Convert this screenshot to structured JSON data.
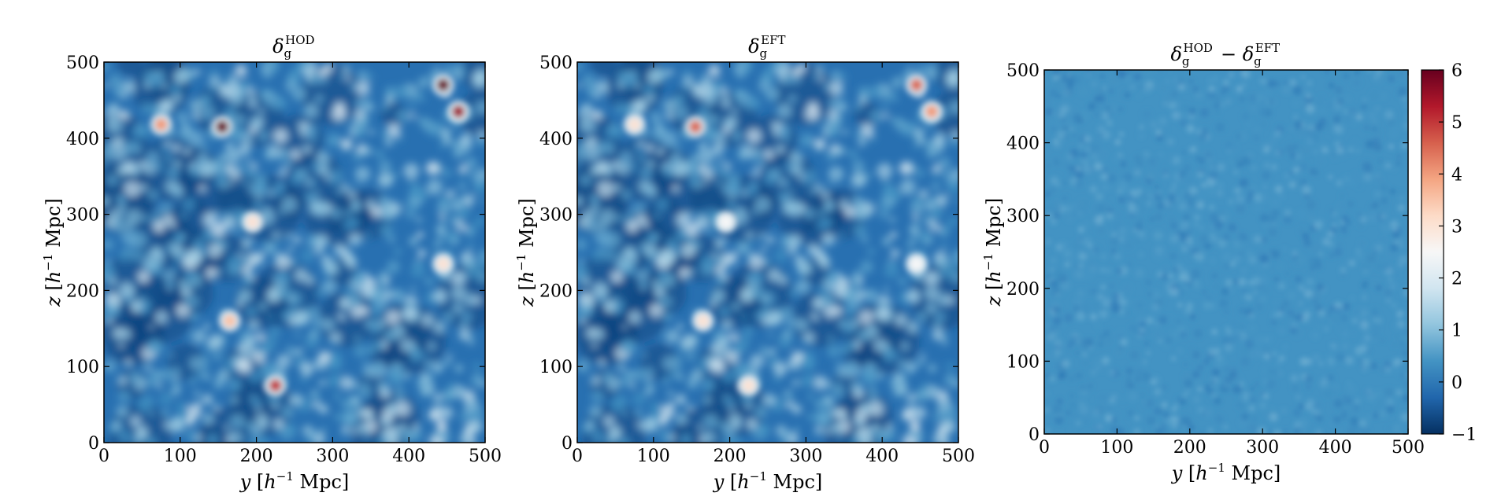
{
  "chart_data": [
    {
      "type": "heatmap",
      "panel": "left",
      "title": {
        "base": "δ",
        "sub": "g",
        "sup": "HOD"
      },
      "xlabel": {
        "var": "y",
        "unit_open": "[",
        "h": "h",
        "exp": "−1",
        "unit": "Mpc]"
      },
      "ylabel": {
        "var": "z",
        "unit_open": "[",
        "h": "h",
        "exp": "−1",
        "unit": "Mpc]"
      },
      "xlim": [
        0,
        500
      ],
      "ylim": [
        0,
        500
      ],
      "xticks": [
        "0",
        "100",
        "200",
        "300",
        "400",
        "500"
      ],
      "yticks": [
        "0",
        "100",
        "200",
        "300",
        "400",
        "500"
      ],
      "colormap": "RdBu_r",
      "field_description_level": "galaxy overdensity, mostly -1 to 2 with peaks near 6",
      "peaks": [
        {
          "y": 445,
          "z": 470,
          "value": 6
        },
        {
          "y": 465,
          "z": 435,
          "value": 5.5
        },
        {
          "y": 155,
          "z": 415,
          "value": 6
        },
        {
          "y": 75,
          "z": 418,
          "value": 4
        },
        {
          "y": 225,
          "z": 75,
          "value": 5
        },
        {
          "y": 165,
          "z": 160,
          "value": 3.5
        },
        {
          "y": 445,
          "z": 235,
          "value": 3
        },
        {
          "y": 195,
          "z": 290,
          "value": 3
        }
      ]
    },
    {
      "type": "heatmap",
      "panel": "middle",
      "title": {
        "base": "δ",
        "sub": "g",
        "sup": "EFT"
      },
      "xlabel": {
        "var": "y",
        "unit_open": "[",
        "h": "h",
        "exp": "−1",
        "unit": "Mpc]"
      },
      "ylabel": {
        "var": "z",
        "unit_open": "[",
        "h": "h",
        "exp": "−1",
        "unit": "Mpc]"
      },
      "xlim": [
        0,
        500
      ],
      "ylim": [
        0,
        500
      ],
      "xticks": [
        "0",
        "100",
        "200",
        "300",
        "400",
        "500"
      ],
      "yticks": [
        "0",
        "100",
        "200",
        "300",
        "400",
        "500"
      ],
      "colormap": "RdBu_r",
      "peaks": [
        {
          "y": 445,
          "z": 470,
          "value": 4.5
        },
        {
          "y": 465,
          "z": 435,
          "value": 4
        },
        {
          "y": 155,
          "z": 415,
          "value": 4.5
        },
        {
          "y": 75,
          "z": 418,
          "value": 3
        },
        {
          "y": 225,
          "z": 75,
          "value": 3
        },
        {
          "y": 165,
          "z": 160,
          "value": 3
        },
        {
          "y": 445,
          "z": 235,
          "value": 2.5
        },
        {
          "y": 195,
          "z": 290,
          "value": 2.5
        }
      ]
    },
    {
      "type": "heatmap",
      "panel": "right",
      "title": {
        "base": "δ",
        "sub": "g",
        "sup": "HOD",
        "op": "−",
        "base2": "δ",
        "sub2": "g",
        "sup2": "EFT"
      },
      "xlabel": {
        "var": "y",
        "unit_open": "[",
        "h": "h",
        "exp": "−1",
        "unit": "Mpc]"
      },
      "ylabel": {
        "var": "z",
        "unit_open": "[",
        "h": "h",
        "exp": "−1",
        "unit": "Mpc]"
      },
      "xlim": [
        0,
        500
      ],
      "ylim": [
        0,
        500
      ],
      "xticks": [
        "0",
        "100",
        "200",
        "300",
        "400",
        "500"
      ],
      "yticks": [
        "0",
        "100",
        "200",
        "300",
        "400",
        "500"
      ],
      "colormap": "RdBu_r",
      "typical_value": 0.4
    }
  ],
  "colorbar": {
    "colormap": "RdBu_r",
    "range": [
      -1,
      6
    ],
    "ticks": [
      "−1",
      "0",
      "1",
      "2",
      "3",
      "4",
      "5",
      "6"
    ],
    "tick_values": [
      -1,
      0,
      1,
      2,
      3,
      4,
      5,
      6
    ],
    "stops": [
      "#053061",
      "#2166ac",
      "#4393c3",
      "#92c5de",
      "#d1e5f0",
      "#f7f7f7",
      "#fddbc7",
      "#f4a582",
      "#d6604d",
      "#b2182b",
      "#67001f"
    ]
  }
}
